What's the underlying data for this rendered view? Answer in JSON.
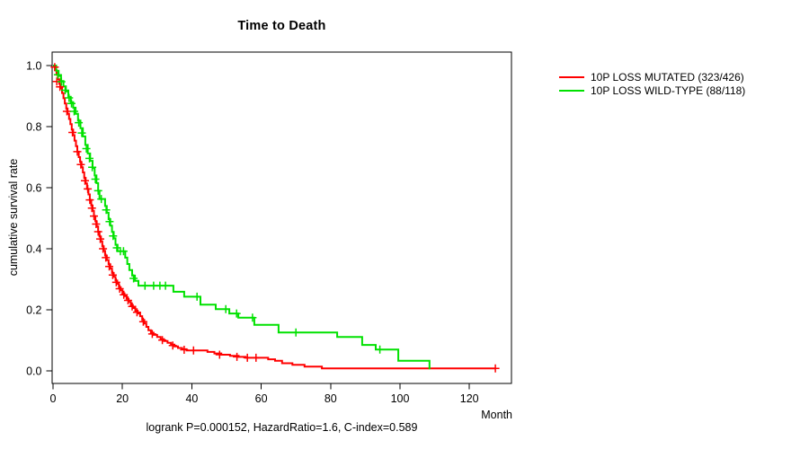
{
  "title": "Time to Death",
  "xlabel": "Month",
  "ylabel": "cumulative survival rate",
  "footnote": "logrank P=0.000152, HazardRatio=1.6, C-index=0.589",
  "legend": [
    {
      "label": "10P LOSS MUTATED (323/426)",
      "color": "#ff0000"
    },
    {
      "label": "10P LOSS WILD-TYPE (88/118)",
      "color": "#00e100"
    }
  ],
  "chart_data": {
    "type": "line",
    "subtype": "kaplan-meier-step-function",
    "title": "Time to Death",
    "xlabel": "Month",
    "ylabel": "cumulative survival rate",
    "annotation": "logrank P=0.000152, HazardRatio=1.6, C-index=0.589",
    "xlim": [
      0,
      132
    ],
    "ylim": [
      0,
      1
    ],
    "xticks": [
      0,
      20,
      40,
      60,
      80,
      100,
      120
    ],
    "yticks": [
      0.0,
      0.2,
      0.4,
      0.6,
      0.8,
      1.0
    ],
    "grid": false,
    "legend_position": "right-outside",
    "series": [
      {
        "name": "10P LOSS MUTATED (323/426)",
        "color": "#ff0000",
        "end_month": 127.5,
        "steps": [
          [
            0,
            1.0
          ],
          [
            0.6,
            0.985
          ],
          [
            1.0,
            0.97
          ],
          [
            1.4,
            0.955
          ],
          [
            1.8,
            0.94
          ],
          [
            2.2,
            0.925
          ],
          [
            2.6,
            0.91
          ],
          [
            3.0,
            0.893
          ],
          [
            3.4,
            0.876
          ],
          [
            3.8,
            0.859
          ],
          [
            4.2,
            0.842
          ],
          [
            4.6,
            0.825
          ],
          [
            5.0,
            0.808
          ],
          [
            5.4,
            0.79
          ],
          [
            5.8,
            0.772
          ],
          [
            6.2,
            0.754
          ],
          [
            6.6,
            0.736
          ],
          [
            7.0,
            0.718
          ],
          [
            7.4,
            0.7
          ],
          [
            7.8,
            0.684
          ],
          [
            8.2,
            0.667
          ],
          [
            8.6,
            0.65
          ],
          [
            9.0,
            0.632
          ],
          [
            9.4,
            0.614
          ],
          [
            9.8,
            0.596
          ],
          [
            10.2,
            0.578
          ],
          [
            10.6,
            0.56
          ],
          [
            11.0,
            0.542
          ],
          [
            11.4,
            0.524
          ],
          [
            11.8,
            0.507
          ],
          [
            12.2,
            0.49
          ],
          [
            12.6,
            0.473
          ],
          [
            13.0,
            0.456
          ],
          [
            13.4,
            0.44
          ],
          [
            13.8,
            0.424
          ],
          [
            14.2,
            0.408
          ],
          [
            14.6,
            0.393
          ],
          [
            15.0,
            0.378
          ],
          [
            15.5,
            0.363
          ],
          [
            16.0,
            0.349
          ],
          [
            16.5,
            0.335
          ],
          [
            17.0,
            0.321
          ],
          [
            17.5,
            0.308
          ],
          [
            18.0,
            0.296
          ],
          [
            18.5,
            0.285
          ],
          [
            19.0,
            0.274
          ],
          [
            19.5,
            0.264
          ],
          [
            20.0,
            0.254
          ],
          [
            20.6,
            0.245
          ],
          [
            21.2,
            0.236
          ],
          [
            21.8,
            0.226
          ],
          [
            22.4,
            0.216
          ],
          [
            23.0,
            0.206
          ],
          [
            23.7,
            0.197
          ],
          [
            24.4,
            0.188
          ],
          [
            25.1,
            0.179
          ],
          [
            25.7,
            0.167
          ],
          [
            26.3,
            0.155
          ],
          [
            26.9,
            0.144
          ],
          [
            27.5,
            0.133
          ],
          [
            28.2,
            0.125
          ],
          [
            29.0,
            0.118
          ],
          [
            30.0,
            0.111
          ],
          [
            31.0,
            0.104
          ],
          [
            32.0,
            0.098
          ],
          [
            33.0,
            0.092
          ],
          [
            34.0,
            0.086
          ],
          [
            35.0,
            0.08
          ],
          [
            36.0,
            0.075
          ],
          [
            37.2,
            0.071
          ],
          [
            38.5,
            0.067
          ],
          [
            44.5,
            0.062
          ],
          [
            46.5,
            0.057
          ],
          [
            48.5,
            0.053
          ],
          [
            51.0,
            0.049
          ],
          [
            53.5,
            0.046
          ],
          [
            55.5,
            0.043
          ],
          [
            62.0,
            0.038
          ],
          [
            64.0,
            0.033
          ],
          [
            66.0,
            0.025
          ],
          [
            69.0,
            0.02
          ],
          [
            72.5,
            0.014
          ],
          [
            77.5,
            0.008
          ]
        ],
        "censors": [
          [
            0.5,
            0.995
          ],
          [
            1.1,
            0.948
          ],
          [
            2.0,
            0.93
          ],
          [
            4.0,
            0.85
          ],
          [
            5.6,
            0.781
          ],
          [
            7.0,
            0.718
          ],
          [
            8.0,
            0.676
          ],
          [
            9.2,
            0.623
          ],
          [
            10.0,
            0.596
          ],
          [
            10.6,
            0.56
          ],
          [
            11.2,
            0.533
          ],
          [
            11.8,
            0.507
          ],
          [
            12.4,
            0.481
          ],
          [
            13.0,
            0.456
          ],
          [
            13.6,
            0.432
          ],
          [
            14.4,
            0.4
          ],
          [
            15.2,
            0.371
          ],
          [
            16.2,
            0.342
          ],
          [
            17.2,
            0.314
          ],
          [
            18.2,
            0.29
          ],
          [
            19.2,
            0.269
          ],
          [
            20.4,
            0.249
          ],
          [
            21.6,
            0.231
          ],
          [
            22.8,
            0.211
          ],
          [
            24.2,
            0.192
          ],
          [
            26.0,
            0.161
          ],
          [
            28.6,
            0.121
          ],
          [
            31.5,
            0.101
          ],
          [
            34.5,
            0.083
          ],
          [
            37.8,
            0.069
          ],
          [
            40.5,
            0.067
          ],
          [
            48.0,
            0.053
          ],
          [
            53.0,
            0.046
          ],
          [
            56.0,
            0.043
          ],
          [
            58.5,
            0.043
          ],
          [
            127.5,
            0.008
          ]
        ]
      },
      {
        "name": "10P LOSS WILD-TYPE (88/118)",
        "color": "#00e100",
        "end_month": 108.5,
        "steps": [
          [
            0,
            1.0
          ],
          [
            0.9,
            0.983
          ],
          [
            1.6,
            0.966
          ],
          [
            2.3,
            0.949
          ],
          [
            3.0,
            0.932
          ],
          [
            3.7,
            0.915
          ],
          [
            4.4,
            0.898
          ],
          [
            5.1,
            0.88
          ],
          [
            5.8,
            0.862
          ],
          [
            6.5,
            0.842
          ],
          [
            7.2,
            0.82
          ],
          [
            7.9,
            0.795
          ],
          [
            8.6,
            0.768
          ],
          [
            9.3,
            0.74
          ],
          [
            10.0,
            0.712
          ],
          [
            10.7,
            0.688
          ],
          [
            11.4,
            0.664
          ],
          [
            12.0,
            0.64
          ],
          [
            12.5,
            0.615
          ],
          [
            13.0,
            0.59
          ],
          [
            13.4,
            0.563
          ],
          [
            15.0,
            0.54
          ],
          [
            15.5,
            0.518
          ],
          [
            16.0,
            0.497
          ],
          [
            16.5,
            0.476
          ],
          [
            17.0,
            0.455
          ],
          [
            17.5,
            0.434
          ],
          [
            18.0,
            0.413
          ],
          [
            18.6,
            0.392
          ],
          [
            20.8,
            0.371
          ],
          [
            21.4,
            0.35
          ],
          [
            22.0,
            0.33
          ],
          [
            22.8,
            0.312
          ],
          [
            23.6,
            0.295
          ],
          [
            24.6,
            0.279
          ],
          [
            34.7,
            0.259
          ],
          [
            37.8,
            0.243
          ],
          [
            42.5,
            0.217
          ],
          [
            46.9,
            0.202
          ],
          [
            50.8,
            0.188
          ],
          [
            53.4,
            0.174
          ],
          [
            58.0,
            0.151
          ],
          [
            65.0,
            0.126
          ],
          [
            81.9,
            0.111
          ],
          [
            89.1,
            0.085
          ],
          [
            93.0,
            0.07
          ],
          [
            99.5,
            0.033
          ],
          [
            108.5,
            0.005
          ]
        ],
        "censors": [
          [
            1.4,
            0.97
          ],
          [
            2.4,
            0.947
          ],
          [
            3.5,
            0.919
          ],
          [
            4.6,
            0.894
          ],
          [
            5.3,
            0.876
          ],
          [
            6.1,
            0.85
          ],
          [
            7.4,
            0.813
          ],
          [
            8.3,
            0.779
          ],
          [
            9.6,
            0.728
          ],
          [
            10.5,
            0.696
          ],
          [
            11.3,
            0.667
          ],
          [
            12.2,
            0.628
          ],
          [
            13.0,
            0.59
          ],
          [
            13.9,
            0.563
          ],
          [
            15.3,
            0.527
          ],
          [
            16.3,
            0.489
          ],
          [
            17.3,
            0.442
          ],
          [
            18.4,
            0.403
          ],
          [
            19.4,
            0.392
          ],
          [
            20.3,
            0.392
          ],
          [
            23.2,
            0.303
          ],
          [
            26.5,
            0.279
          ],
          [
            29.0,
            0.279
          ],
          [
            30.8,
            0.279
          ],
          [
            32.4,
            0.279
          ],
          [
            41.5,
            0.243
          ],
          [
            49.8,
            0.202
          ],
          [
            52.9,
            0.188
          ],
          [
            57.5,
            0.174
          ],
          [
            70.0,
            0.126
          ],
          [
            94.2,
            0.07
          ]
        ]
      }
    ]
  }
}
